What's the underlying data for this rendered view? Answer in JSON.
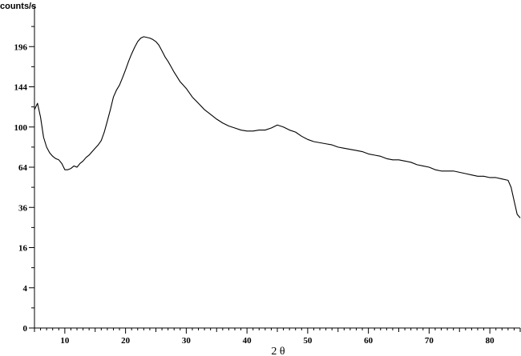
{
  "chart_data": {
    "type": "line",
    "title": "",
    "xlabel": "2 θ",
    "ylabel": "counts/s",
    "y_scale": "sqrt",
    "xlim": [
      5,
      85
    ],
    "ylim": [
      0,
      256
    ],
    "grid": false,
    "legend": "none",
    "x_ticks": [
      10,
      20,
      30,
      40,
      50,
      60,
      70,
      80
    ],
    "y_ticks": [
      0,
      4,
      16,
      36,
      64,
      100,
      144,
      196
    ],
    "series": [
      {
        "color": "#000000",
        "x": [
          5,
          5.5,
          6,
          6.5,
          7,
          7.5,
          8,
          8.5,
          9,
          9.5,
          10,
          10.5,
          11,
          11.5,
          12,
          12.5,
          13,
          13.5,
          14,
          14.5,
          15,
          15.5,
          16,
          16.5,
          17,
          17.5,
          18,
          18.5,
          19,
          19.5,
          20,
          20.5,
          21,
          21.5,
          22,
          22.5,
          23,
          23.5,
          24,
          24.5,
          25,
          25.5,
          26,
          26.5,
          27,
          27.5,
          28,
          28.5,
          29,
          29.5,
          30,
          31,
          32,
          33,
          34,
          35,
          36,
          37,
          38,
          39,
          40,
          41,
          42,
          43,
          44,
          45,
          46,
          47,
          48,
          49,
          50,
          51,
          52,
          53,
          54,
          55,
          56,
          57,
          58,
          59,
          60,
          61,
          62,
          63,
          64,
          65,
          66,
          67,
          68,
          69,
          70,
          71,
          72,
          73,
          74,
          75,
          76,
          77,
          78,
          79,
          80,
          81,
          82,
          83,
          83.5,
          84,
          84.5,
          85
        ],
        "y": [
          118,
          125,
          110,
          90,
          81,
          76,
          73,
          71,
          70,
          67,
          62,
          62,
          63,
          65,
          64,
          67,
          69,
          72,
          74,
          77,
          80,
          83,
          87,
          95,
          106,
          118,
          132,
          140,
          146,
          155,
          165,
          176,
          186,
          195,
          203,
          208,
          210,
          209,
          208,
          206,
          203,
          198,
          190,
          182,
          176,
          169,
          162,
          156,
          150,
          146,
          142,
          132,
          125,
          118,
          113,
          108,
          104,
          101,
          99,
          97,
          96,
          96,
          97,
          97,
          99,
          102,
          100,
          97,
          95,
          91,
          88,
          86,
          85,
          84,
          83,
          81,
          80,
          79,
          78,
          77,
          75,
          74,
          73,
          71,
          70,
          70,
          69,
          68,
          66,
          65,
          64,
          62,
          61,
          61,
          61,
          60,
          59,
          58,
          57,
          57,
          56,
          56,
          55,
          54,
          49,
          40,
          32,
          30
        ]
      }
    ]
  }
}
